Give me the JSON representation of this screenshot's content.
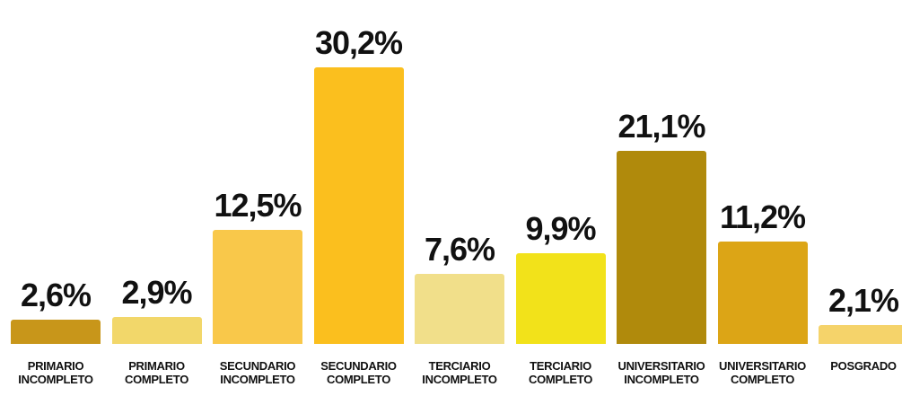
{
  "chart_data": {
    "type": "bar",
    "categories": [
      "PRIMARIO INCOMPLETO",
      "PRIMARIO COMPLETO",
      "SECUNDARIO INCOMPLETO",
      "SECUNDARIO COMPLETO",
      "TERCIARIO INCOMPLETO",
      "TERCIARIO COMPLETO",
      "UNIVERSITARIO INCOMPLETO",
      "UNIVERSITARIO COMPLETO",
      "POSGRADO"
    ],
    "values": [
      2.6,
      2.9,
      12.5,
      30.2,
      7.6,
      9.9,
      21.1,
      11.2,
      2.1
    ],
    "value_labels": [
      "2,6%",
      "2,9%",
      "12,5%",
      "30,2%",
      "7,6%",
      "9,9%",
      "21,1%",
      "11,2%",
      "2,1%"
    ],
    "colors": [
      "#c8961a",
      "#f2d76a",
      "#f9c84a",
      "#fbbf1e",
      "#f1df8a",
      "#f2e21a",
      "#b08a0c",
      "#dca516",
      "#f5d36a"
    ]
  }
}
